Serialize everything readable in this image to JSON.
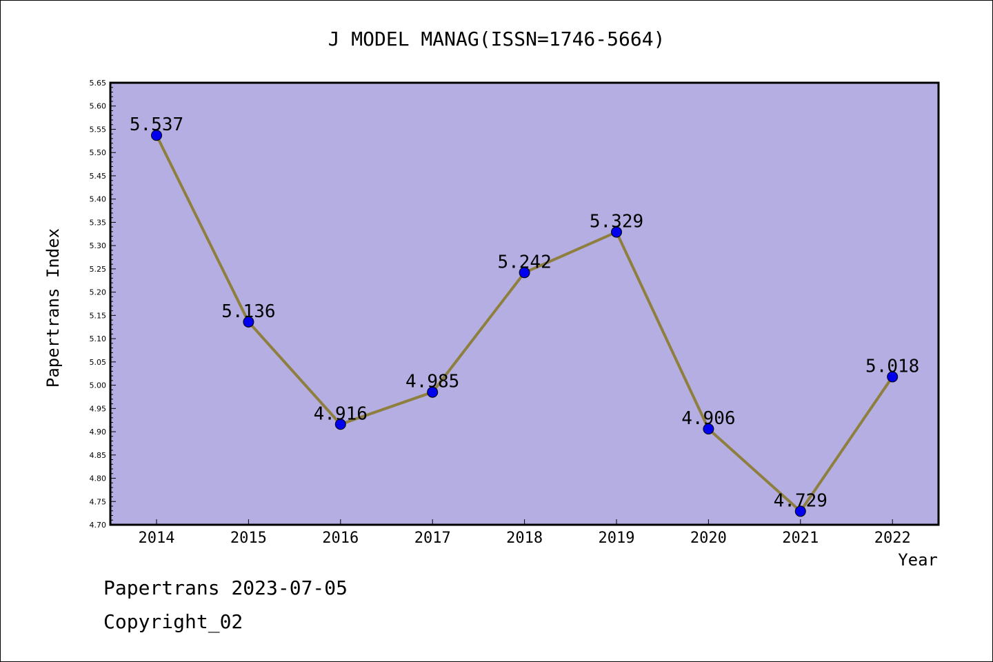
{
  "chart_data": {
    "type": "line",
    "title": "J MODEL MANAG(ISSN=1746-5664)",
    "xlabel": "Year",
    "ylabel": "Papertrans Index",
    "categories": [
      "2014",
      "2015",
      "2016",
      "2017",
      "2018",
      "2019",
      "2020",
      "2021",
      "2022"
    ],
    "values": [
      5.537,
      5.136,
      4.916,
      4.985,
      5.242,
      5.329,
      4.906,
      4.729,
      5.018
    ],
    "data_labels": [
      "5.537",
      "5.136",
      "4.916",
      "4.985",
      "5.242",
      "5.329",
      "4.906",
      "4.729",
      "5.018"
    ],
    "ylim": [
      4.7,
      5.65
    ],
    "yticks": [
      "4.70",
      "4.75",
      "4.80",
      "4.85",
      "4.90",
      "4.95",
      "5.00",
      "5.05",
      "5.10",
      "5.15",
      "5.20",
      "5.25",
      "5.30",
      "5.35",
      "5.40",
      "5.45",
      "5.50",
      "5.55",
      "5.60",
      "5.65"
    ],
    "grid": false,
    "colors": {
      "plot_background": "#b4aee2",
      "line": "#8f7f3f",
      "marker": "#0000ee"
    }
  },
  "footer": {
    "line1": "Papertrans 2023-07-05",
    "line2": "Copyright_02"
  }
}
